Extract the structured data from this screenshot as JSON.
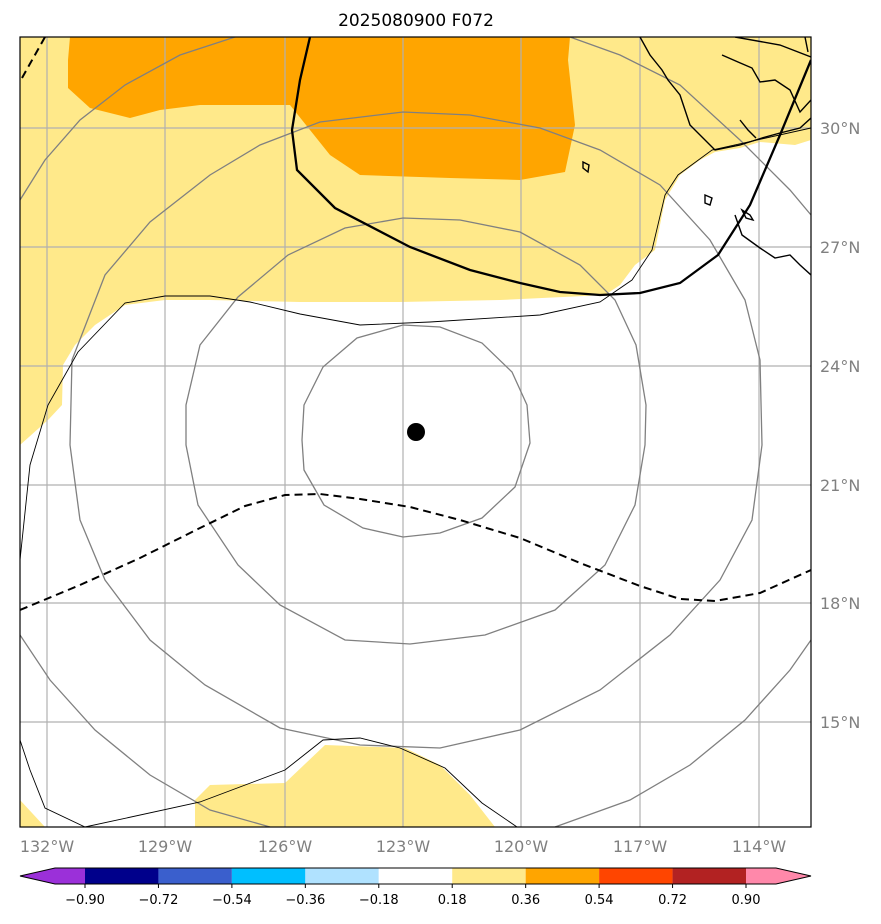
{
  "title": "2025080900 F072",
  "map": {
    "lon_labels": [
      "132°W",
      "129°W",
      "126°W",
      "123°W",
      "120°W",
      "117°W",
      "114°W"
    ],
    "lat_labels": [
      "30°N",
      "27°N",
      "24°N",
      "21°N",
      "18°N",
      "15°N"
    ],
    "storm_center": {
      "lon": -122.7,
      "lat": 22.3
    },
    "fill_colors": {
      "light": "#ffe98a",
      "mid": "#ffa500"
    }
  },
  "colorbar": {
    "colors": [
      "#9b30d9",
      "#00008b",
      "#3a5fcd",
      "#00bfff",
      "#b0e2ff",
      "#ffffff",
      "#ffe98a",
      "#ffa500",
      "#ff4500",
      "#b22222",
      "#ff88aa"
    ],
    "labels": [
      "−0.90",
      "−0.72",
      "−0.54",
      "−0.36",
      "−0.18",
      "0.18",
      "0.36",
      "0.54",
      "0.72",
      "0.90"
    ]
  }
}
